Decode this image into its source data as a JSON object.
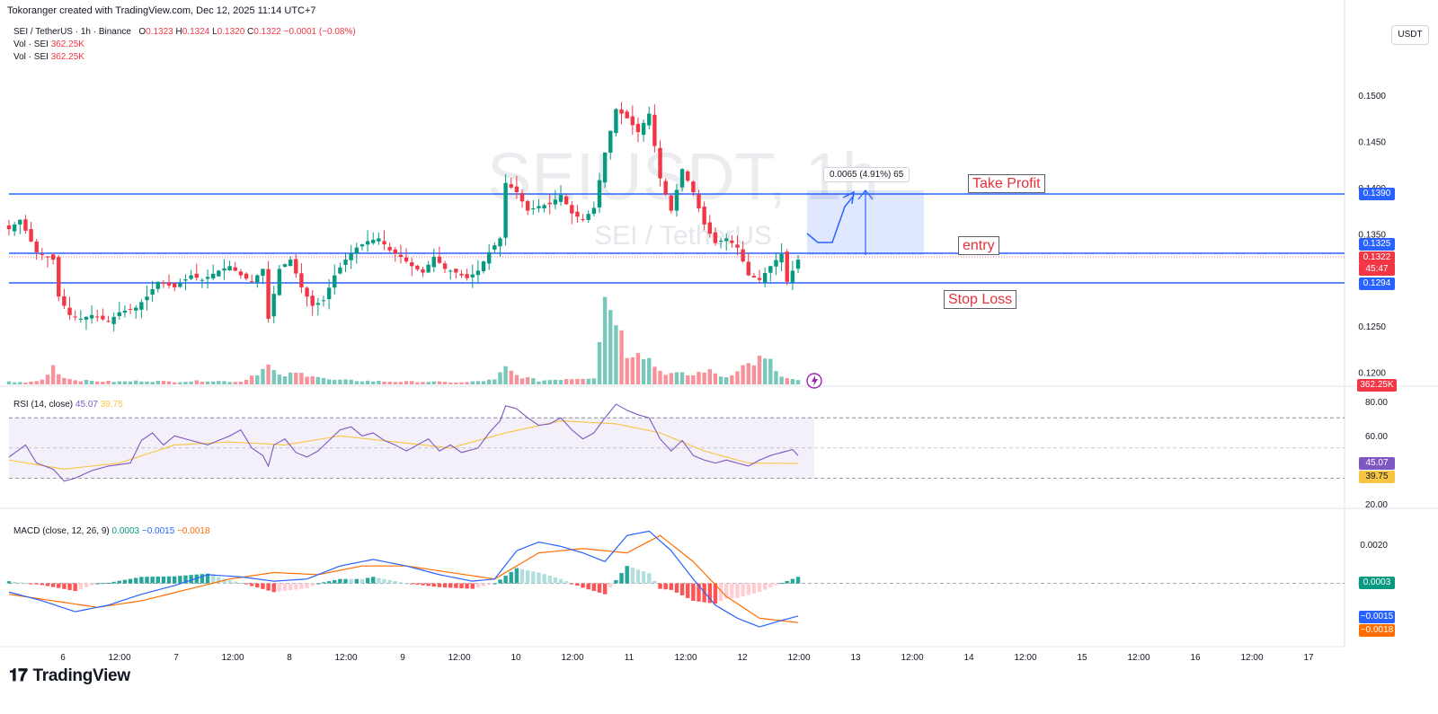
{
  "header": {
    "credit": "Tokoranger created with TradingView.com, Dec 12, 2025 11:14 UTC+7"
  },
  "legend": {
    "symbol_line": "SEI / TetherUS · 1h · Binance",
    "o_label": "O",
    "o_value": "0.1323",
    "h_label": "H",
    "h_value": "0.1324",
    "l_label": "L",
    "l_value": "0.1320",
    "c_label": "C",
    "c_value": "0.1322",
    "change": "−0.0001 (−0.08%)",
    "vol1_label": "Vol · SEI",
    "vol1_value": "362.25K",
    "vol2_label": "Vol · SEI",
    "vol2_value": "362.25K"
  },
  "watermark": {
    "symbol": "SEIUSDT, 1h",
    "name": "SEI / TetherUS"
  },
  "currency_button": "USDT",
  "annotations": {
    "take_profit": "Take Profit",
    "entry": "entry",
    "stop_loss": "Stop Loss",
    "measure": "0.0065 (4.91%) 65"
  },
  "price_tags": {
    "tp": "0.1390",
    "entry": "0.1325",
    "last": "0.1322",
    "countdown": "45:47",
    "sl": "0.1294",
    "volume": "362.25K"
  },
  "rsi": {
    "legend_label": "RSI (14, close)",
    "value": "45.07",
    "ma_value": "39.75",
    "ticks": [
      "80.00",
      "60.00",
      "20.00"
    ]
  },
  "macd": {
    "legend_label": "MACD (close, 12, 26, 9)",
    "hist_value": "0.0003",
    "macd_value": "−0.0015",
    "signal_value": "−0.0018",
    "ticks": [
      "0.0020",
      "0.0000"
    ]
  },
  "colors": {
    "up": "#089981",
    "down": "#f23645",
    "line_blue": "#2962ff",
    "signal": "#ff6d00",
    "rsi": "#7e57c2",
    "rsi_ma": "#f7c541"
  },
  "footer": {
    "brand": "TradingView"
  },
  "chart_data": {
    "type": "candlestick",
    "price_axis": {
      "ticks": [
        "0.1500",
        "0.1450",
        "0.1400",
        "0.1350",
        "0.1250",
        "0.1200"
      ],
      "range": [
        0.1185,
        0.1535
      ]
    },
    "time_axis": {
      "ticks": [
        "6",
        "12:00",
        "7",
        "12:00",
        "8",
        "12:00",
        "9",
        "12:00",
        "10",
        "12:00",
        "11",
        "12:00",
        "12",
        "12:00",
        "13",
        "12:00",
        "14",
        "12:00",
        "15",
        "12:00",
        "16",
        "12:00",
        "17"
      ]
    },
    "levels": {
      "take_profit": 0.139,
      "entry": 0.1325,
      "stop_loss": 0.1294
    },
    "close_points": [
      [
        0,
        0.1355
      ],
      [
        2,
        0.1365
      ],
      [
        5,
        0.133
      ],
      [
        8,
        0.1322
      ],
      [
        9,
        0.1282
      ],
      [
        11,
        0.1262
      ],
      [
        13,
        0.1258
      ],
      [
        15,
        0.1262
      ],
      [
        18,
        0.1255
      ],
      [
        20,
        0.1265
      ],
      [
        23,
        0.127
      ],
      [
        25,
        0.1282
      ],
      [
        27,
        0.1298
      ],
      [
        30,
        0.1292
      ],
      [
        33,
        0.1305
      ],
      [
        35,
        0.13
      ],
      [
        38,
        0.131
      ],
      [
        40,
        0.1315
      ],
      [
        42,
        0.1305
      ],
      [
        44,
        0.1298
      ],
      [
        46,
        0.1312
      ],
      [
        47,
        0.1258
      ],
      [
        49,
        0.1312
      ],
      [
        51,
        0.1322
      ],
      [
        53,
        0.1292
      ],
      [
        55,
        0.1272
      ],
      [
        57,
        0.1278
      ],
      [
        59,
        0.1305
      ],
      [
        61,
        0.1322
      ],
      [
        63,
        0.1335
      ],
      [
        65,
        0.1342
      ],
      [
        67,
        0.1345
      ],
      [
        69,
        0.1332
      ],
      [
        71,
        0.1325
      ],
      [
        73,
        0.1315
      ],
      [
        75,
        0.1308
      ],
      [
        77,
        0.1325
      ],
      [
        79,
        0.1312
      ],
      [
        81,
        0.1308
      ],
      [
        83,
        0.1302
      ],
      [
        85,
        0.131
      ],
      [
        87,
        0.133
      ],
      [
        89,
        0.1345
      ],
      [
        90,
        0.1405
      ],
      [
        92,
        0.1395
      ],
      [
        94,
        0.1375
      ],
      [
        96,
        0.138
      ],
      [
        98,
        0.1382
      ],
      [
        100,
        0.1392
      ],
      [
        102,
        0.1372
      ],
      [
        104,
        0.1365
      ],
      [
        106,
        0.1378
      ],
      [
        108,
        0.1438
      ],
      [
        110,
        0.1485
      ],
      [
        112,
        0.1475
      ],
      [
        114,
        0.146
      ],
      [
        116,
        0.148
      ],
      [
        118,
        0.141
      ],
      [
        120,
        0.1375
      ],
      [
        122,
        0.142
      ],
      [
        124,
        0.1395
      ],
      [
        126,
        0.136
      ],
      [
        128,
        0.134
      ],
      [
        130,
        0.1345
      ],
      [
        132,
        0.1335
      ],
      [
        134,
        0.1305
      ],
      [
        136,
        0.13
      ],
      [
        138,
        0.1315
      ],
      [
        140,
        0.1328
      ],
      [
        141,
        0.1298
      ],
      [
        143,
        0.1322
      ]
    ],
    "volume_points": [
      [
        0,
        3
      ],
      [
        3,
        2
      ],
      [
        6,
        5
      ],
      [
        8,
        22
      ],
      [
        9,
        12
      ],
      [
        11,
        6
      ],
      [
        14,
        4
      ],
      [
        20,
        3
      ],
      [
        24,
        4
      ],
      [
        30,
        3
      ],
      [
        36,
        4
      ],
      [
        42,
        3
      ],
      [
        47,
        20
      ],
      [
        49,
        9
      ],
      [
        52,
        12
      ],
      [
        55,
        11
      ],
      [
        58,
        5
      ],
      [
        64,
        4
      ],
      [
        70,
        3
      ],
      [
        76,
        3
      ],
      [
        82,
        2
      ],
      [
        88,
        5
      ],
      [
        90,
        18
      ],
      [
        92,
        10
      ],
      [
        96,
        4
      ],
      [
        100,
        6
      ],
      [
        106,
        8
      ],
      [
        108,
        98
      ],
      [
        110,
        82
      ],
      [
        111,
        55
      ],
      [
        112,
        35
      ],
      [
        114,
        42
      ],
      [
        116,
        28
      ],
      [
        118,
        15
      ],
      [
        120,
        12
      ],
      [
        124,
        10
      ],
      [
        126,
        16
      ],
      [
        130,
        8
      ],
      [
        132,
        18
      ],
      [
        134,
        22
      ],
      [
        136,
        28
      ],
      [
        138,
        24
      ],
      [
        140,
        8
      ],
      [
        143,
        4
      ]
    ],
    "rsi_points": [
      [
        0,
        44
      ],
      [
        3,
        52
      ],
      [
        5,
        40
      ],
      [
        8,
        36
      ],
      [
        10,
        28
      ],
      [
        12,
        30
      ],
      [
        15,
        35
      ],
      [
        18,
        38
      ],
      [
        22,
        40
      ],
      [
        24,
        55
      ],
      [
        26,
        60
      ],
      [
        28,
        52
      ],
      [
        30,
        58
      ],
      [
        33,
        55
      ],
      [
        36,
        52
      ],
      [
        40,
        58
      ],
      [
        42,
        62
      ],
      [
        44,
        50
      ],
      [
        46,
        45
      ],
      [
        47,
        38
      ],
      [
        48,
        52
      ],
      [
        50,
        56
      ],
      [
        52,
        47
      ],
      [
        54,
        44
      ],
      [
        56,
        48
      ],
      [
        58,
        55
      ],
      [
        60,
        62
      ],
      [
        62,
        64
      ],
      [
        64,
        58
      ],
      [
        66,
        60
      ],
      [
        68,
        55
      ],
      [
        70,
        52
      ],
      [
        72,
        48
      ],
      [
        74,
        52
      ],
      [
        76,
        56
      ],
      [
        78,
        48
      ],
      [
        80,
        52
      ],
      [
        82,
        47
      ],
      [
        85,
        50
      ],
      [
        87,
        60
      ],
      [
        89,
        68
      ],
      [
        90,
        78
      ],
      [
        92,
        76
      ],
      [
        94,
        70
      ],
      [
        96,
        65
      ],
      [
        98,
        66
      ],
      [
        100,
        70
      ],
      [
        102,
        62
      ],
      [
        104,
        56
      ],
      [
        106,
        60
      ],
      [
        108,
        70
      ],
      [
        110,
        79
      ],
      [
        112,
        75
      ],
      [
        114,
        72
      ],
      [
        116,
        70
      ],
      [
        118,
        56
      ],
      [
        120,
        48
      ],
      [
        122,
        55
      ],
      [
        124,
        45
      ],
      [
        126,
        42
      ],
      [
        128,
        40
      ],
      [
        130,
        42
      ],
      [
        132,
        40
      ],
      [
        134,
        38
      ],
      [
        136,
        42
      ],
      [
        138,
        45
      ],
      [
        140,
        47
      ],
      [
        142,
        49
      ],
      [
        143,
        45
      ]
    ],
    "rsi_ma_points": [
      [
        0,
        42
      ],
      [
        10,
        36
      ],
      [
        20,
        40
      ],
      [
        30,
        52
      ],
      [
        40,
        54
      ],
      [
        50,
        52
      ],
      [
        60,
        58
      ],
      [
        70,
        54
      ],
      [
        80,
        50
      ],
      [
        90,
        60
      ],
      [
        100,
        68
      ],
      [
        110,
        66
      ],
      [
        118,
        60
      ],
      [
        126,
        48
      ],
      [
        134,
        40
      ],
      [
        143,
        39.75
      ]
    ],
    "rsi_range": [
      10,
      85
    ],
    "macd_points": [
      [
        0,
        -0.0004
      ],
      [
        6,
        -0.0008
      ],
      [
        12,
        -0.0013
      ],
      [
        18,
        -0.001
      ],
      [
        24,
        -0.0005
      ],
      [
        30,
        -0.0001
      ],
      [
        36,
        0.0004
      ],
      [
        42,
        0.0003
      ],
      [
        48,
        0.0001
      ],
      [
        54,
        0.0002
      ],
      [
        60,
        0.0008
      ],
      [
        66,
        0.0011
      ],
      [
        72,
        0.0008
      ],
      [
        78,
        0.0004
      ],
      [
        84,
        0.0001
      ],
      [
        88,
        0.0002
      ],
      [
        92,
        0.0015
      ],
      [
        96,
        0.0019
      ],
      [
        100,
        0.0017
      ],
      [
        104,
        0.0014
      ],
      [
        108,
        0.001
      ],
      [
        112,
        0.0022
      ],
      [
        116,
        0.0024
      ],
      [
        120,
        0.0015
      ],
      [
        124,
        0.0002
      ],
      [
        128,
        -0.001
      ],
      [
        132,
        -0.0016
      ],
      [
        136,
        -0.002
      ],
      [
        140,
        -0.0017
      ],
      [
        143,
        -0.0015
      ]
    ],
    "signal_points": [
      [
        0,
        -0.0005
      ],
      [
        8,
        -0.0008
      ],
      [
        16,
        -0.0011
      ],
      [
        24,
        -0.0008
      ],
      [
        32,
        -0.0003
      ],
      [
        40,
        0.0002
      ],
      [
        48,
        0.0005
      ],
      [
        56,
        0.0004
      ],
      [
        64,
        0.0008
      ],
      [
        72,
        0.0008
      ],
      [
        80,
        0.0005
      ],
      [
        88,
        0.0002
      ],
      [
        96,
        0.0014
      ],
      [
        104,
        0.0016
      ],
      [
        112,
        0.0014
      ],
      [
        118,
        0.0022
      ],
      [
        124,
        0.001
      ],
      [
        130,
        -0.0006
      ],
      [
        136,
        -0.0016
      ],
      [
        143,
        -0.0018
      ]
    ],
    "macd_range": [
      -0.0027,
      0.0032
    ]
  }
}
